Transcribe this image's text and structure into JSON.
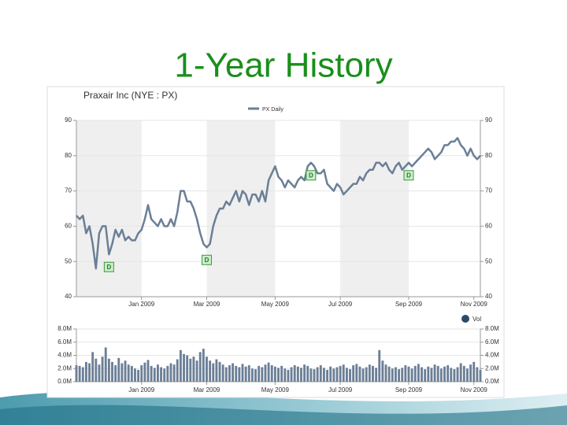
{
  "title": "1-Year History",
  "chart_data": [
    {
      "type": "line",
      "title": "Praxair Inc (NYE : PX)",
      "categories": [
        null,
        null,
        null,
        null,
        null,
        null,
        null,
        null,
        null,
        null,
        null,
        null,
        null,
        null,
        null,
        null,
        null,
        null,
        null,
        null,
        "Jan 2009",
        null,
        null,
        null,
        null,
        null,
        null,
        null,
        null,
        null,
        null,
        null,
        null,
        null,
        null,
        null,
        null,
        null,
        null,
        null,
        "Mar 2009",
        null,
        null,
        null,
        null,
        null,
        null,
        null,
        null,
        null,
        null,
        null,
        null,
        null,
        null,
        null,
        null,
        null,
        null,
        null,
        null,
        "May 2009",
        null,
        null,
        null,
        null,
        null,
        null,
        null,
        null,
        null,
        null,
        null,
        null,
        null,
        null,
        null,
        null,
        null,
        null,
        null,
        "Jul 2009",
        null,
        null,
        null,
        null,
        null,
        null,
        null,
        null,
        null,
        null,
        null,
        null,
        null,
        null,
        null,
        null,
        null,
        null,
        null,
        null,
        "Sep 2009",
        null,
        null,
        null,
        null,
        null,
        null,
        null,
        null,
        null,
        null,
        null,
        null,
        null,
        null,
        null,
        null,
        null,
        null,
        null,
        "Nov 2009",
        null,
        null
      ],
      "series": [
        {
          "name": "PX Daily",
          "color": "#6b7f96",
          "values": [
            63,
            62,
            63,
            58,
            60,
            55,
            48,
            58,
            60,
            60,
            52,
            55,
            59,
            57,
            59,
            56,
            57,
            56,
            56,
            58,
            59,
            62,
            66,
            62,
            61,
            60,
            62,
            60,
            60,
            62,
            60,
            64,
            70,
            70,
            67,
            67,
            65,
            62,
            58,
            55,
            54,
            55,
            60,
            63,
            65,
            65,
            67,
            66,
            68,
            70,
            67,
            70,
            69,
            66,
            69,
            69,
            67,
            70,
            67,
            73,
            75,
            77,
            74,
            73,
            71,
            73,
            72,
            71,
            73,
            74,
            73,
            77,
            78,
            77,
            75,
            75,
            76,
            72,
            71,
            70,
            72,
            71,
            69,
            70,
            71,
            72,
            72,
            74,
            73,
            75,
            76,
            76,
            78,
            78,
            77,
            78,
            76,
            75,
            77,
            78,
            76,
            77,
            78,
            77,
            78,
            79,
            80,
            81,
            82,
            81,
            79,
            80,
            81,
            83,
            83,
            84,
            84,
            85,
            83,
            82,
            80,
            82,
            80,
            79,
            80
          ]
        }
      ],
      "annotations": [
        {
          "text": "D",
          "at": 10
        },
        {
          "text": "D",
          "at": 40
        },
        {
          "text": "D",
          "at": 72
        },
        {
          "text": "D",
          "at": 102
        }
      ],
      "ylim": [
        40,
        90
      ],
      "yticks": [
        40,
        50,
        60,
        70,
        80,
        90
      ],
      "grid": true
    },
    {
      "type": "bar",
      "categories": [
        null,
        null,
        null,
        null,
        null,
        null,
        null,
        null,
        null,
        null,
        null,
        null,
        null,
        null,
        null,
        null,
        null,
        null,
        null,
        null,
        "Jan 2009",
        null,
        null,
        null,
        null,
        null,
        null,
        null,
        null,
        null,
        null,
        null,
        null,
        null,
        null,
        null,
        null,
        null,
        null,
        null,
        "Mar 2009",
        null,
        null,
        null,
        null,
        null,
        null,
        null,
        null,
        null,
        null,
        null,
        null,
        null,
        null,
        null,
        null,
        null,
        null,
        null,
        null,
        "May 2009",
        null,
        null,
        null,
        null,
        null,
        null,
        null,
        null,
        null,
        null,
        null,
        null,
        null,
        null,
        null,
        null,
        null,
        null,
        null,
        "Jul 2009",
        null,
        null,
        null,
        null,
        null,
        null,
        null,
        null,
        null,
        null,
        null,
        null,
        null,
        null,
        null,
        null,
        null,
        null,
        null,
        null,
        "Sep 2009",
        null,
        null,
        null,
        null,
        null,
        null,
        null,
        null,
        null,
        null,
        null,
        null,
        null,
        null,
        null,
        null,
        null,
        null,
        null,
        "Nov 2009",
        null,
        null
      ],
      "series": [
        {
          "name": "Vol",
          "color": "#6b7f96",
          "values": [
            2.5,
            2.4,
            2.2,
            3.0,
            2.8,
            4.5,
            3.5,
            2.6,
            3.8,
            5.2,
            3.5,
            3.0,
            2.5,
            3.6,
            2.8,
            3.2,
            2.6,
            2.4,
            2.0,
            1.8,
            2.5,
            2.9,
            3.3,
            2.4,
            2.1,
            2.6,
            2.2,
            2.0,
            2.4,
            2.8,
            2.6,
            3.4,
            4.8,
            4.2,
            4.0,
            3.5,
            3.8,
            3.2,
            4.5,
            5.0,
            3.8,
            3.2,
            2.8,
            3.4,
            3.0,
            2.6,
            2.2,
            2.5,
            2.8,
            2.4,
            2.2,
            2.7,
            2.3,
            2.5,
            2.0,
            1.9,
            2.4,
            2.2,
            2.6,
            2.9,
            2.5,
            2.3,
            2.1,
            2.4,
            2.0,
            1.8,
            2.2,
            2.5,
            2.3,
            2.1,
            2.6,
            2.4,
            2.0,
            1.9,
            2.2,
            2.5,
            2.1,
            1.8,
            2.3,
            2.0,
            2.2,
            2.4,
            2.6,
            2.1,
            1.9,
            2.5,
            2.7,
            2.3,
            2.0,
            2.2,
            2.6,
            2.4,
            2.1,
            4.8,
            3.2,
            2.6,
            2.3,
            2.0,
            2.2,
            1.9,
            2.1,
            2.5,
            2.3,
            2.0,
            2.4,
            2.7,
            2.2,
            1.9,
            2.3,
            2.1,
            2.6,
            2.4,
            2.0,
            2.3,
            2.5,
            2.1,
            1.9,
            2.2,
            2.8,
            2.4,
            2.0,
            2.6,
            3.0,
            2.2,
            1.8
          ]
        }
      ],
      "ylim": [
        0,
        8
      ],
      "yticks": [
        {
          "value": 0,
          "label": "0.0M"
        },
        {
          "value": 2,
          "label": "2.0M"
        },
        {
          "value": 4,
          "label": "4.0M"
        },
        {
          "value": 6,
          "label": "6.0M"
        },
        {
          "value": 8,
          "label": "8.0M"
        }
      ],
      "grid": true
    }
  ]
}
